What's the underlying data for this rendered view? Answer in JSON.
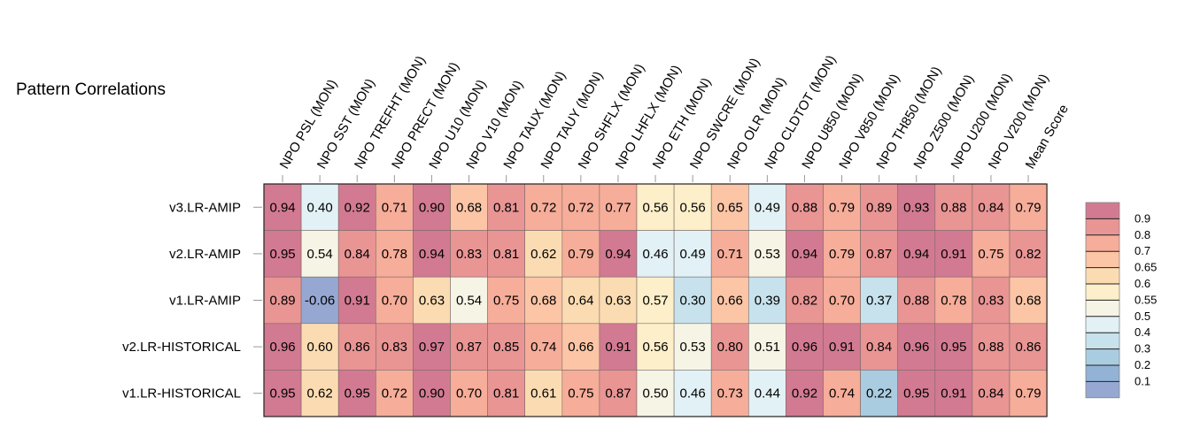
{
  "chart_data": {
    "type": "heatmap",
    "title": "Pattern Correlations",
    "columns": [
      "NPO PSL (MON)",
      "NPO SST (MON)",
      "NPO TREFHT (MON)",
      "NPO PRECT (MON)",
      "NPO U10 (MON)",
      "NPO V10 (MON)",
      "NPO TAUX (MON)",
      "NPO TAUY (MON)",
      "NPO SHFLX (MON)",
      "NPO LHFLX (MON)",
      "NPO ETH (MON)",
      "NPO SWCRE (MON)",
      "NPO OLR (MON)",
      "NPO CLDTOT (MON)",
      "NPO U850 (MON)",
      "NPO V850 (MON)",
      "NPO TH850 (MON)",
      "NPO Z500 (MON)",
      "NPO U200 (MON)",
      "NPO V200 (MON)",
      "Mean Score"
    ],
    "rows": [
      "v3.LR-AMIP",
      "v2.LR-AMIP",
      "v1.LR-AMIP",
      "v2.LR-HISTORICAL",
      "v1.LR-HISTORICAL"
    ],
    "values": [
      [
        0.94,
        0.4,
        0.92,
        0.71,
        0.9,
        0.68,
        0.81,
        0.72,
        0.72,
        0.77,
        0.56,
        0.56,
        0.65,
        0.49,
        0.88,
        0.79,
        0.89,
        0.93,
        0.88,
        0.84,
        0.79
      ],
      [
        0.95,
        0.54,
        0.84,
        0.78,
        0.94,
        0.83,
        0.81,
        0.62,
        0.79,
        0.94,
        0.46,
        0.49,
        0.71,
        0.53,
        0.94,
        0.79,
        0.87,
        0.94,
        0.91,
        0.75,
        0.82
      ],
      [
        0.89,
        -0.06,
        0.91,
        0.7,
        0.63,
        0.54,
        0.75,
        0.68,
        0.64,
        0.63,
        0.57,
        0.3,
        0.66,
        0.39,
        0.82,
        0.7,
        0.37,
        0.88,
        0.78,
        0.83,
        0.68
      ],
      [
        0.96,
        0.6,
        0.86,
        0.83,
        0.97,
        0.87,
        0.85,
        0.74,
        0.66,
        0.91,
        0.56,
        0.53,
        0.8,
        0.51,
        0.96,
        0.91,
        0.84,
        0.96,
        0.95,
        0.88,
        0.86
      ],
      [
        0.95,
        0.62,
        0.95,
        0.72,
        0.9,
        0.7,
        0.81,
        0.61,
        0.75,
        0.87,
        0.5,
        0.46,
        0.73,
        0.44,
        0.92,
        0.74,
        0.22,
        0.95,
        0.91,
        0.84,
        0.79
      ]
    ],
    "colorbar": {
      "ticks": [
        "0.9",
        "0.8",
        "0.7",
        "0.65",
        "0.6",
        "0.55",
        "0.5",
        "0.4",
        "0.3",
        "0.2",
        "0.1"
      ],
      "bins": [
        {
          "min": 0.9,
          "max": 1.0,
          "color": "#d27a91"
        },
        {
          "min": 0.8,
          "max": 0.9,
          "color": "#e89594"
        },
        {
          "min": 0.7,
          "max": 0.8,
          "color": "#f6ad99"
        },
        {
          "min": 0.65,
          "max": 0.7,
          "color": "#fbc5a6"
        },
        {
          "min": 0.6,
          "max": 0.65,
          "color": "#fbdcb2"
        },
        {
          "min": 0.55,
          "max": 0.6,
          "color": "#fcefc9"
        },
        {
          "min": 0.5,
          "max": 0.55,
          "color": "#f6f4e4"
        },
        {
          "min": 0.4,
          "max": 0.5,
          "color": "#e2f1f5"
        },
        {
          "min": 0.3,
          "max": 0.4,
          "color": "#c7e2ec"
        },
        {
          "min": 0.2,
          "max": 0.3,
          "color": "#a9cce0"
        },
        {
          "min": 0.1,
          "max": 0.2,
          "color": "#92b2d6"
        },
        {
          "min": -1.0,
          "max": 0.1,
          "color": "#96a8d2"
        }
      ]
    }
  }
}
